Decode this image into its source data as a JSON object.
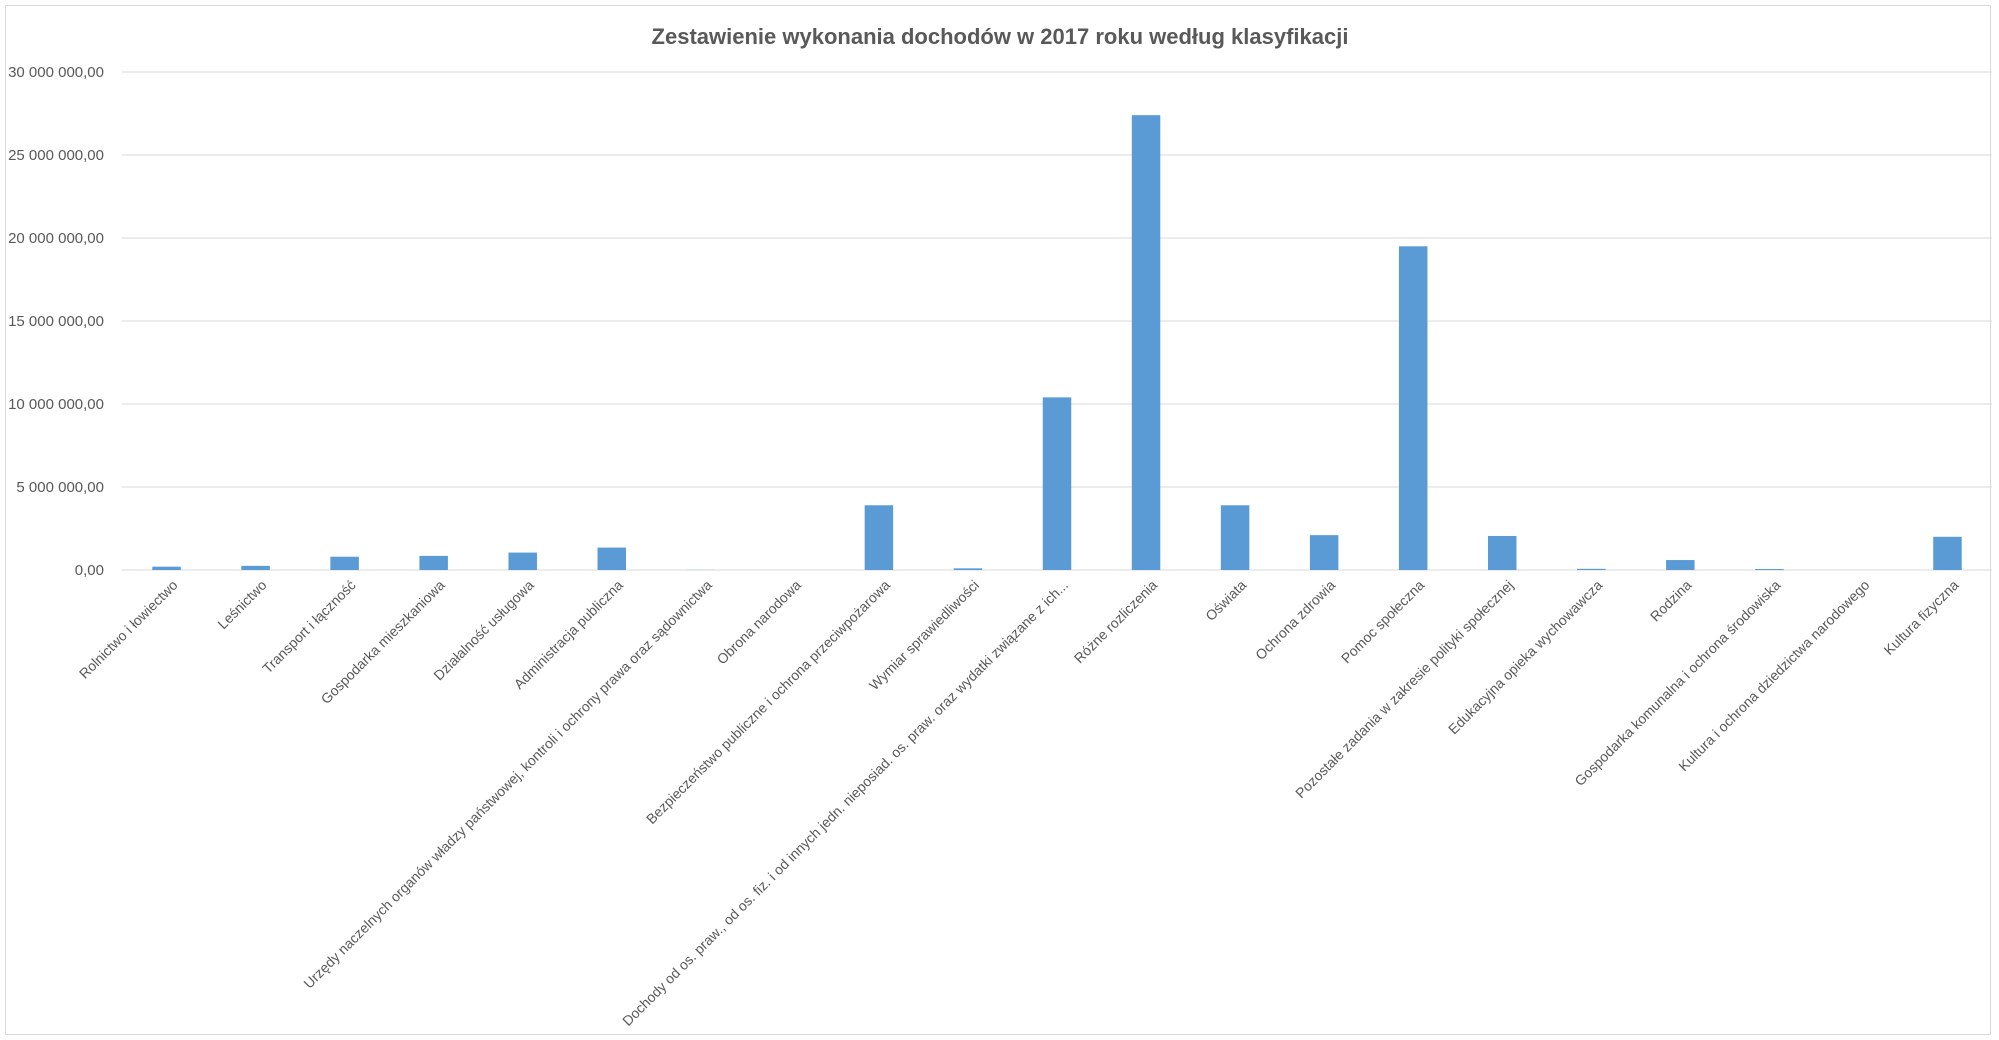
{
  "chart_data": {
    "type": "bar",
    "title": "Zestawienie wykonania dochodów w 2017 roku według klasyfikacji",
    "xlabel": "",
    "ylabel": "",
    "ylim": [
      0,
      30000000
    ],
    "yticks": [
      0,
      5000000,
      10000000,
      15000000,
      20000000,
      25000000,
      30000000
    ],
    "ytick_labels": [
      "0,00",
      "5 000 000,00",
      "10 000 000,00",
      "15 000 000,00",
      "20 000 000,00",
      "25 000 000,00",
      "30 000 000,00"
    ],
    "grid": true,
    "legend": "none",
    "bar_color": "#5b9bd5",
    "categories": [
      "Rolnictwo i łowiectwo",
      "Leśnictwo",
      "Transport i łączność",
      "Gospodarka mieszkaniowa",
      "Działalność usługowa",
      "Administracja publiczna",
      "Urzędy naczelnych organów władzy państwowej, kontroli i ochrony prawa oraz sądownictwa",
      "Obrona narodowa",
      "Bezpieczeństwo publiczne i ochrona przeciwpożarowa",
      "Wymiar sprawiedliwości",
      "Dochody od os. praw., od os. fiz. i od innych jedn. nieposiad. os. praw. oraz wydatki związane z ich...",
      "Różne rozliczenia",
      "Oświata",
      "Ochrona zdrowia",
      "Pomoc społeczna",
      "Pozostałe zadania w zakresie polityki społecznej",
      "Edukacyjna opieka wychowawcza",
      "Rodzina",
      "Gospodarka komunalna i ochrona środowiska",
      "Kultura i ochrona dziedzictwa narodowego",
      "Kultura fizyczna"
    ],
    "values": [
      200000,
      250000,
      800000,
      850000,
      1050000,
      1350000,
      8000,
      0,
      3900000,
      100000,
      10400000,
      27400000,
      3900000,
      2100000,
      19500000,
      2050000,
      70000,
      600000,
      60000,
      0,
      2000000
    ]
  }
}
